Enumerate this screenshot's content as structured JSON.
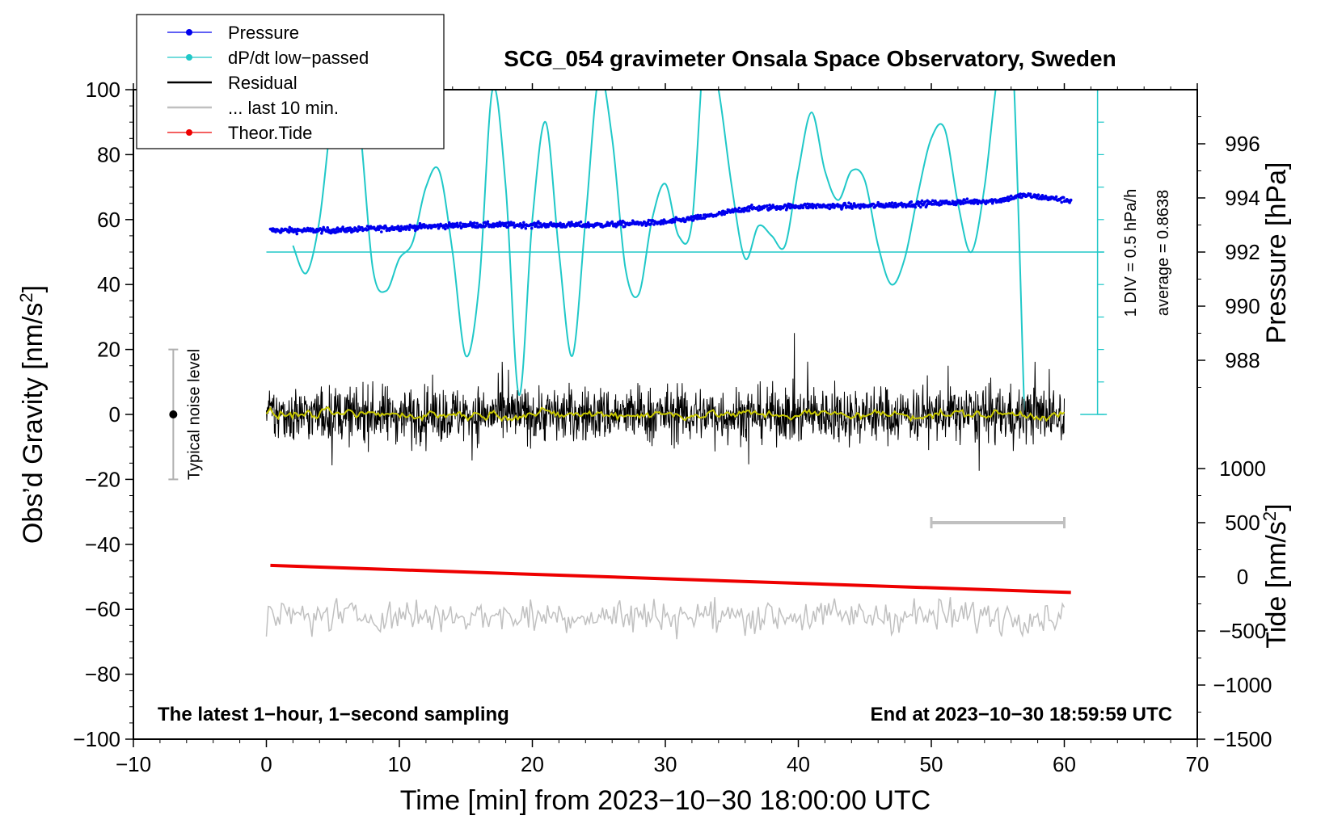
{
  "chart_data": {
    "type": "line",
    "title": "SCG_054 gravimeter Onsala Space Observatory, Sweden",
    "xlabel": "Time [min] from 2023−10−30 18:00:00 UTC",
    "xlim": [
      -10,
      70
    ],
    "x_ticks": [
      -10,
      0,
      10,
      20,
      30,
      40,
      50,
      60,
      70
    ],
    "x_tick_labels": [
      "−10",
      "0",
      "10",
      "20",
      "30",
      "40",
      "50",
      "60",
      "70"
    ],
    "y_left": {
      "label": "Obs’d Gravity [nm/s",
      "label_sup": "2",
      "label_end": "]",
      "ylim": [
        -100,
        100
      ],
      "ticks": [
        -100,
        -80,
        -60,
        -40,
        -20,
        0,
        20,
        40,
        60,
        80,
        100
      ],
      "tick_labels": [
        "−100",
        "−80",
        "−60",
        "−40",
        "−20",
        "0",
        "20",
        "40",
        "60",
        "80",
        "100"
      ]
    },
    "y_right_pressure": {
      "label": "Pressure [hPa]",
      "ticks": [
        988,
        990,
        992,
        994,
        996
      ],
      "tick_labels": [
        "988",
        "990",
        "992",
        "994",
        "996"
      ],
      "gravity_at_992": 50,
      "gravity_per_hpa": 8.333
    },
    "y_right_tide": {
      "label": "Tide [nm/s",
      "label_sup": "2",
      "label_end": "]",
      "ticks": [
        1000,
        500,
        0,
        -500,
        -1000,
        -1500
      ],
      "tick_labels": [
        "1000",
        "500",
        "0",
        "−500",
        "−1000",
        "−1500"
      ],
      "gravity_at_0": -50,
      "gravity_per_unit": 0.0333333
    },
    "legend": [
      {
        "label": "Pressure",
        "color": "#0000ee",
        "marker": true
      },
      {
        "label": "dP/dt low−passed",
        "color": "#20c8c8",
        "marker": true
      },
      {
        "label": "Residual",
        "color": "#000000",
        "marker": false
      },
      {
        "label": "... last 10 min.",
        "color": "#c0c0c0",
        "marker": false
      },
      {
        "label": "Theor.Tide",
        "color": "#ee0000",
        "marker": true
      }
    ],
    "series": [
      {
        "name": "Pressure",
        "color": "#0000ee",
        "units": "hPa",
        "x": [
          0.3,
          5,
          10,
          15,
          20,
          25,
          30,
          33,
          36,
          40,
          45,
          50,
          55,
          57,
          60.5
        ],
        "y": [
          992.8,
          992.8,
          992.9,
          993.0,
          993.0,
          993.0,
          993.1,
          993.3,
          993.6,
          993.7,
          993.7,
          993.8,
          993.9,
          994.1,
          993.9
        ]
      },
      {
        "name": "dP/dt low−passed",
        "color": "#20c8c8",
        "units": "nm/s² (display)",
        "x": [
          2,
          3,
          4,
          5,
          6,
          7,
          8,
          9,
          10,
          11,
          12,
          13,
          14,
          15,
          16,
          17,
          18,
          19,
          20,
          21,
          22,
          23,
          24,
          25,
          26,
          27,
          28,
          29,
          30,
          31,
          32,
          33,
          34,
          35,
          36,
          37,
          38,
          39,
          40,
          41,
          42,
          43,
          44,
          45,
          46,
          47,
          48,
          49,
          50,
          51,
          52,
          53,
          54,
          55,
          56,
          57
        ],
        "y": [
          52,
          43.5,
          60,
          95,
          110,
          90,
          45,
          38,
          48,
          53,
          70,
          75,
          50,
          18,
          40,
          100,
          70,
          6,
          60,
          90,
          50,
          18,
          60,
          104,
          85,
          45,
          37,
          60,
          71,
          55,
          59,
          115,
          100,
          70,
          48,
          58,
          55,
          52,
          75,
          93,
          75,
          66,
          75,
          72,
          52,
          40,
          48,
          68,
          85,
          88,
          65,
          50,
          70,
          105,
          120,
          0
        ]
      },
      {
        "name": "Residual",
        "color": "#000000",
        "x_range": [
          0,
          60
        ],
        "amplitude_nm_s2": 10,
        "mean": 0
      },
      {
        "name": "Residual smoothed",
        "color": "#c8c800",
        "x_range": [
          0,
          60
        ],
        "mean": 0
      },
      {
        "name": "Theor.Tide",
        "color": "#ee0000",
        "units": "nm/s²",
        "x": [
          0.3,
          60.5
        ],
        "y": [
          105,
          -145
        ]
      },
      {
        "name": "... last 10 min.",
        "color": "#c0c0c0",
        "x_range": [
          0,
          60
        ],
        "center_gravity": -62,
        "amplitude_nm_s2": 8
      }
    ],
    "annotations": {
      "noise_bar": {
        "label": "Typical noise level",
        "x": -7,
        "y_center": 0,
        "half_range": 20
      },
      "last10_bar": {
        "x_from": 50,
        "x_to": 60,
        "tide_value": 500
      },
      "dpdt_scale": {
        "label1": "1 DIV = 0.5 hPa/h",
        "label2": "average = 0.8638",
        "baseline_gravity": 50
      },
      "bottom_left": "The latest 1−hour, 1−second sampling",
      "bottom_right": "End at 2023−10−30 18:59:59 UTC"
    }
  }
}
